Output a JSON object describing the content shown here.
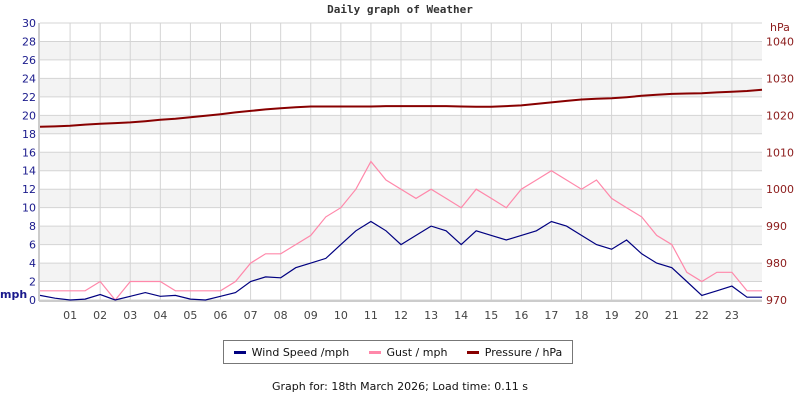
{
  "chart_data": {
    "type": "line",
    "title": "Daily graph of Weather",
    "ylabel": "mph",
    "y2label": "hPa",
    "ylim": [
      0,
      30
    ],
    "y2lim": [
      970,
      1045
    ],
    "xlim": [
      0,
      24
    ],
    "yticks": [
      "0",
      "2",
      "4",
      "6",
      "8",
      "10",
      "12",
      "14",
      "16",
      "18",
      "20",
      "22",
      "24",
      "26",
      "28",
      "30"
    ],
    "y2ticks": [
      "970",
      "980",
      "990",
      "1000",
      "1010",
      "1020",
      "1030",
      "1040"
    ],
    "xticks": [
      "01",
      "02",
      "03",
      "04",
      "05",
      "06",
      "07",
      "08",
      "09",
      "10",
      "11",
      "12",
      "13",
      "14",
      "15",
      "16",
      "17",
      "18",
      "19",
      "20",
      "21",
      "22",
      "23"
    ],
    "grid": true,
    "legend_position": "bottom",
    "colors": {
      "wind": "#000080",
      "gust": "#ff88aa",
      "pressure": "#880000",
      "left_axis": "#1a1a8c",
      "right_axis": "#8b1a1a"
    },
    "x": [
      0,
      0.5,
      1,
      1.5,
      2,
      2.5,
      3,
      3.5,
      4,
      4.5,
      5,
      5.5,
      6,
      6.5,
      7,
      7.5,
      8,
      8.5,
      9,
      9.5,
      10,
      10.5,
      11,
      11.5,
      12,
      12.5,
      13,
      13.5,
      14,
      14.5,
      15,
      15.5,
      16,
      16.5,
      17,
      17.5,
      18,
      18.5,
      19,
      19.5,
      20,
      20.5,
      21,
      21.5,
      22,
      22.5,
      23,
      23.5,
      24
    ],
    "series": [
      {
        "name": "Wind Speed /mph",
        "axis": "left",
        "values": [
          0.5,
          0.2,
          0,
          0.1,
          0.6,
          0,
          0.4,
          0.8,
          0.4,
          0.5,
          0.1,
          0,
          0.4,
          0.8,
          2,
          2.5,
          2.4,
          3.5,
          4,
          4.5,
          6,
          7.5,
          8.5,
          7.5,
          6,
          7,
          8,
          7.5,
          6,
          7.5,
          7,
          6.5,
          7,
          7.5,
          8.5,
          8,
          7,
          6,
          5.5,
          6.5,
          5,
          4,
          3.5,
          2,
          0.5,
          1,
          1.5,
          0.3,
          0.3
        ]
      },
      {
        "name": "Gust / mph",
        "axis": "left",
        "values": [
          1,
          1,
          1,
          1,
          2,
          0,
          2,
          2,
          2,
          1,
          1,
          1,
          1,
          2,
          4,
          5,
          5,
          6,
          7,
          9,
          10,
          12,
          15,
          13,
          12,
          11,
          12,
          11,
          10,
          12,
          11,
          10,
          12,
          13,
          14,
          13,
          12,
          13,
          11,
          10,
          9,
          7,
          6,
          3,
          2,
          3,
          3,
          1,
          1
        ]
      },
      {
        "name": "Pressure / hPa",
        "axis": "right",
        "values": [
          1016.9,
          1017.0,
          1017.2,
          1017.5,
          1017.7,
          1017.9,
          1018.1,
          1018.4,
          1018.8,
          1019.1,
          1019.5,
          1019.9,
          1020.3,
          1020.8,
          1021.2,
          1021.6,
          1021.9,
          1022.2,
          1022.4,
          1022.4,
          1022.4,
          1022.4,
          1022.4,
          1022.5,
          1022.5,
          1022.5,
          1022.5,
          1022.5,
          1022.4,
          1022.3,
          1022.3,
          1022.5,
          1022.7,
          1023.1,
          1023.5,
          1023.9,
          1024.3,
          1024.5,
          1024.6,
          1024.9,
          1025.3,
          1025.6,
          1025.8,
          1025.9,
          1026.0,
          1026.2,
          1026.4,
          1026.6,
          1026.9
        ]
      }
    ]
  },
  "footer": "Graph for: 18th March 2026; Load time: 0.11 s"
}
